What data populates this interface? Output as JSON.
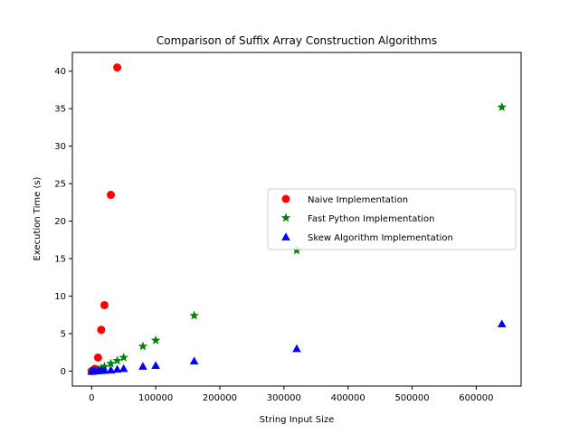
{
  "chart_data": {
    "type": "scatter",
    "title": "Comparison of Suffix Array Construction Algorithms",
    "xlabel": "String Input Size",
    "ylabel": "Execution Time (s)",
    "xlim": [
      -30000,
      670000
    ],
    "ylim": [
      -2,
      42.5
    ],
    "xticks": [
      0,
      100000,
      200000,
      300000,
      400000,
      500000,
      600000
    ],
    "yticks": [
      0,
      5,
      10,
      15,
      20,
      25,
      30,
      35,
      40
    ],
    "grid": false,
    "legend_position": "center-right",
    "series": [
      {
        "name": "Naive Implementation",
        "marker": "circle",
        "color": "#ff0000",
        "points": [
          [
            100,
            0.0
          ],
          [
            500,
            0.01
          ],
          [
            1000,
            0.03
          ],
          [
            2000,
            0.08
          ],
          [
            5000,
            0.3
          ],
          [
            10000,
            1.8
          ],
          [
            15000,
            5.5
          ],
          [
            20000,
            8.8
          ],
          [
            30000,
            23.5
          ],
          [
            40000,
            40.5
          ]
        ]
      },
      {
        "name": "Fast Python Implementation",
        "marker": "star",
        "color": "#008000",
        "points": [
          [
            100,
            0.0
          ],
          [
            500,
            0.0
          ],
          [
            1000,
            0.01
          ],
          [
            2000,
            0.02
          ],
          [
            5000,
            0.08
          ],
          [
            10000,
            0.2
          ],
          [
            15000,
            0.4
          ],
          [
            20000,
            0.6
          ],
          [
            30000,
            1.0
          ],
          [
            40000,
            1.4
          ],
          [
            50000,
            1.8
          ],
          [
            80000,
            3.3
          ],
          [
            100000,
            4.1
          ],
          [
            160000,
            7.4
          ],
          [
            320000,
            16.1
          ],
          [
            640000,
            35.2
          ]
        ]
      },
      {
        "name": "Skew Algorithm Implementation",
        "marker": "triangle",
        "color": "#0000ff",
        "points": [
          [
            100,
            0.0
          ],
          [
            500,
            0.0
          ],
          [
            1000,
            0.01
          ],
          [
            2000,
            0.01
          ],
          [
            5000,
            0.02
          ],
          [
            10000,
            0.04
          ],
          [
            15000,
            0.07
          ],
          [
            20000,
            0.1
          ],
          [
            30000,
            0.15
          ],
          [
            40000,
            0.25
          ],
          [
            50000,
            0.35
          ],
          [
            80000,
            0.65
          ],
          [
            100000,
            0.75
          ],
          [
            160000,
            1.35
          ],
          [
            320000,
            3.0
          ],
          [
            640000,
            6.3
          ]
        ]
      }
    ]
  }
}
